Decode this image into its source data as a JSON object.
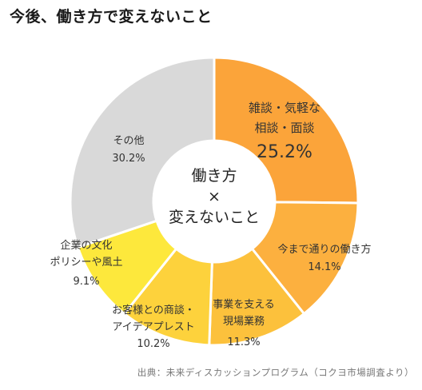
{
  "title": "今後、働き方で変えないこと",
  "source": "出典：未来ディスカッションプログラム（コクヨ市場調査より）",
  "center_label": [
    "働き方",
    "×",
    "変えないこと"
  ],
  "chart_data": {
    "type": "pie",
    "title": "今後、働き方で変えないこと",
    "unit": "%",
    "slices": [
      {
        "label": [
          "雑談・気軽な",
          "相談・面談"
        ],
        "value": 25.2,
        "value_text": "25.2%",
        "color": "#FBA43A",
        "text_color": "#333333",
        "emphasis": true
      },
      {
        "label": [
          "今まで通りの働き方"
        ],
        "value": 14.1,
        "value_text": "14.1%",
        "color": "#FCB03F",
        "text_color": "#333333"
      },
      {
        "label": [
          "事業を支える",
          "現場業務"
        ],
        "value": 11.3,
        "value_text": "11.3%",
        "color": "#FCC13C",
        "text_color": "#333333"
      },
      {
        "label": [
          "お客様との商談・",
          "アイデアプレスト"
        ],
        "value": 10.2,
        "value_text": "10.2%",
        "color": "#FDD23C",
        "text_color": "#333333"
      },
      {
        "label": [
          "企業の文化",
          "ポリシーや風土"
        ],
        "value": 9.1,
        "value_text": "9.1%",
        "color": "#FDE83C",
        "text_color": "#333333"
      },
      {
        "label": [
          "その他"
        ],
        "value": 30.2,
        "value_text": "30.2%",
        "color": "#D9D9D9",
        "text_color": "#333333"
      }
    ]
  }
}
